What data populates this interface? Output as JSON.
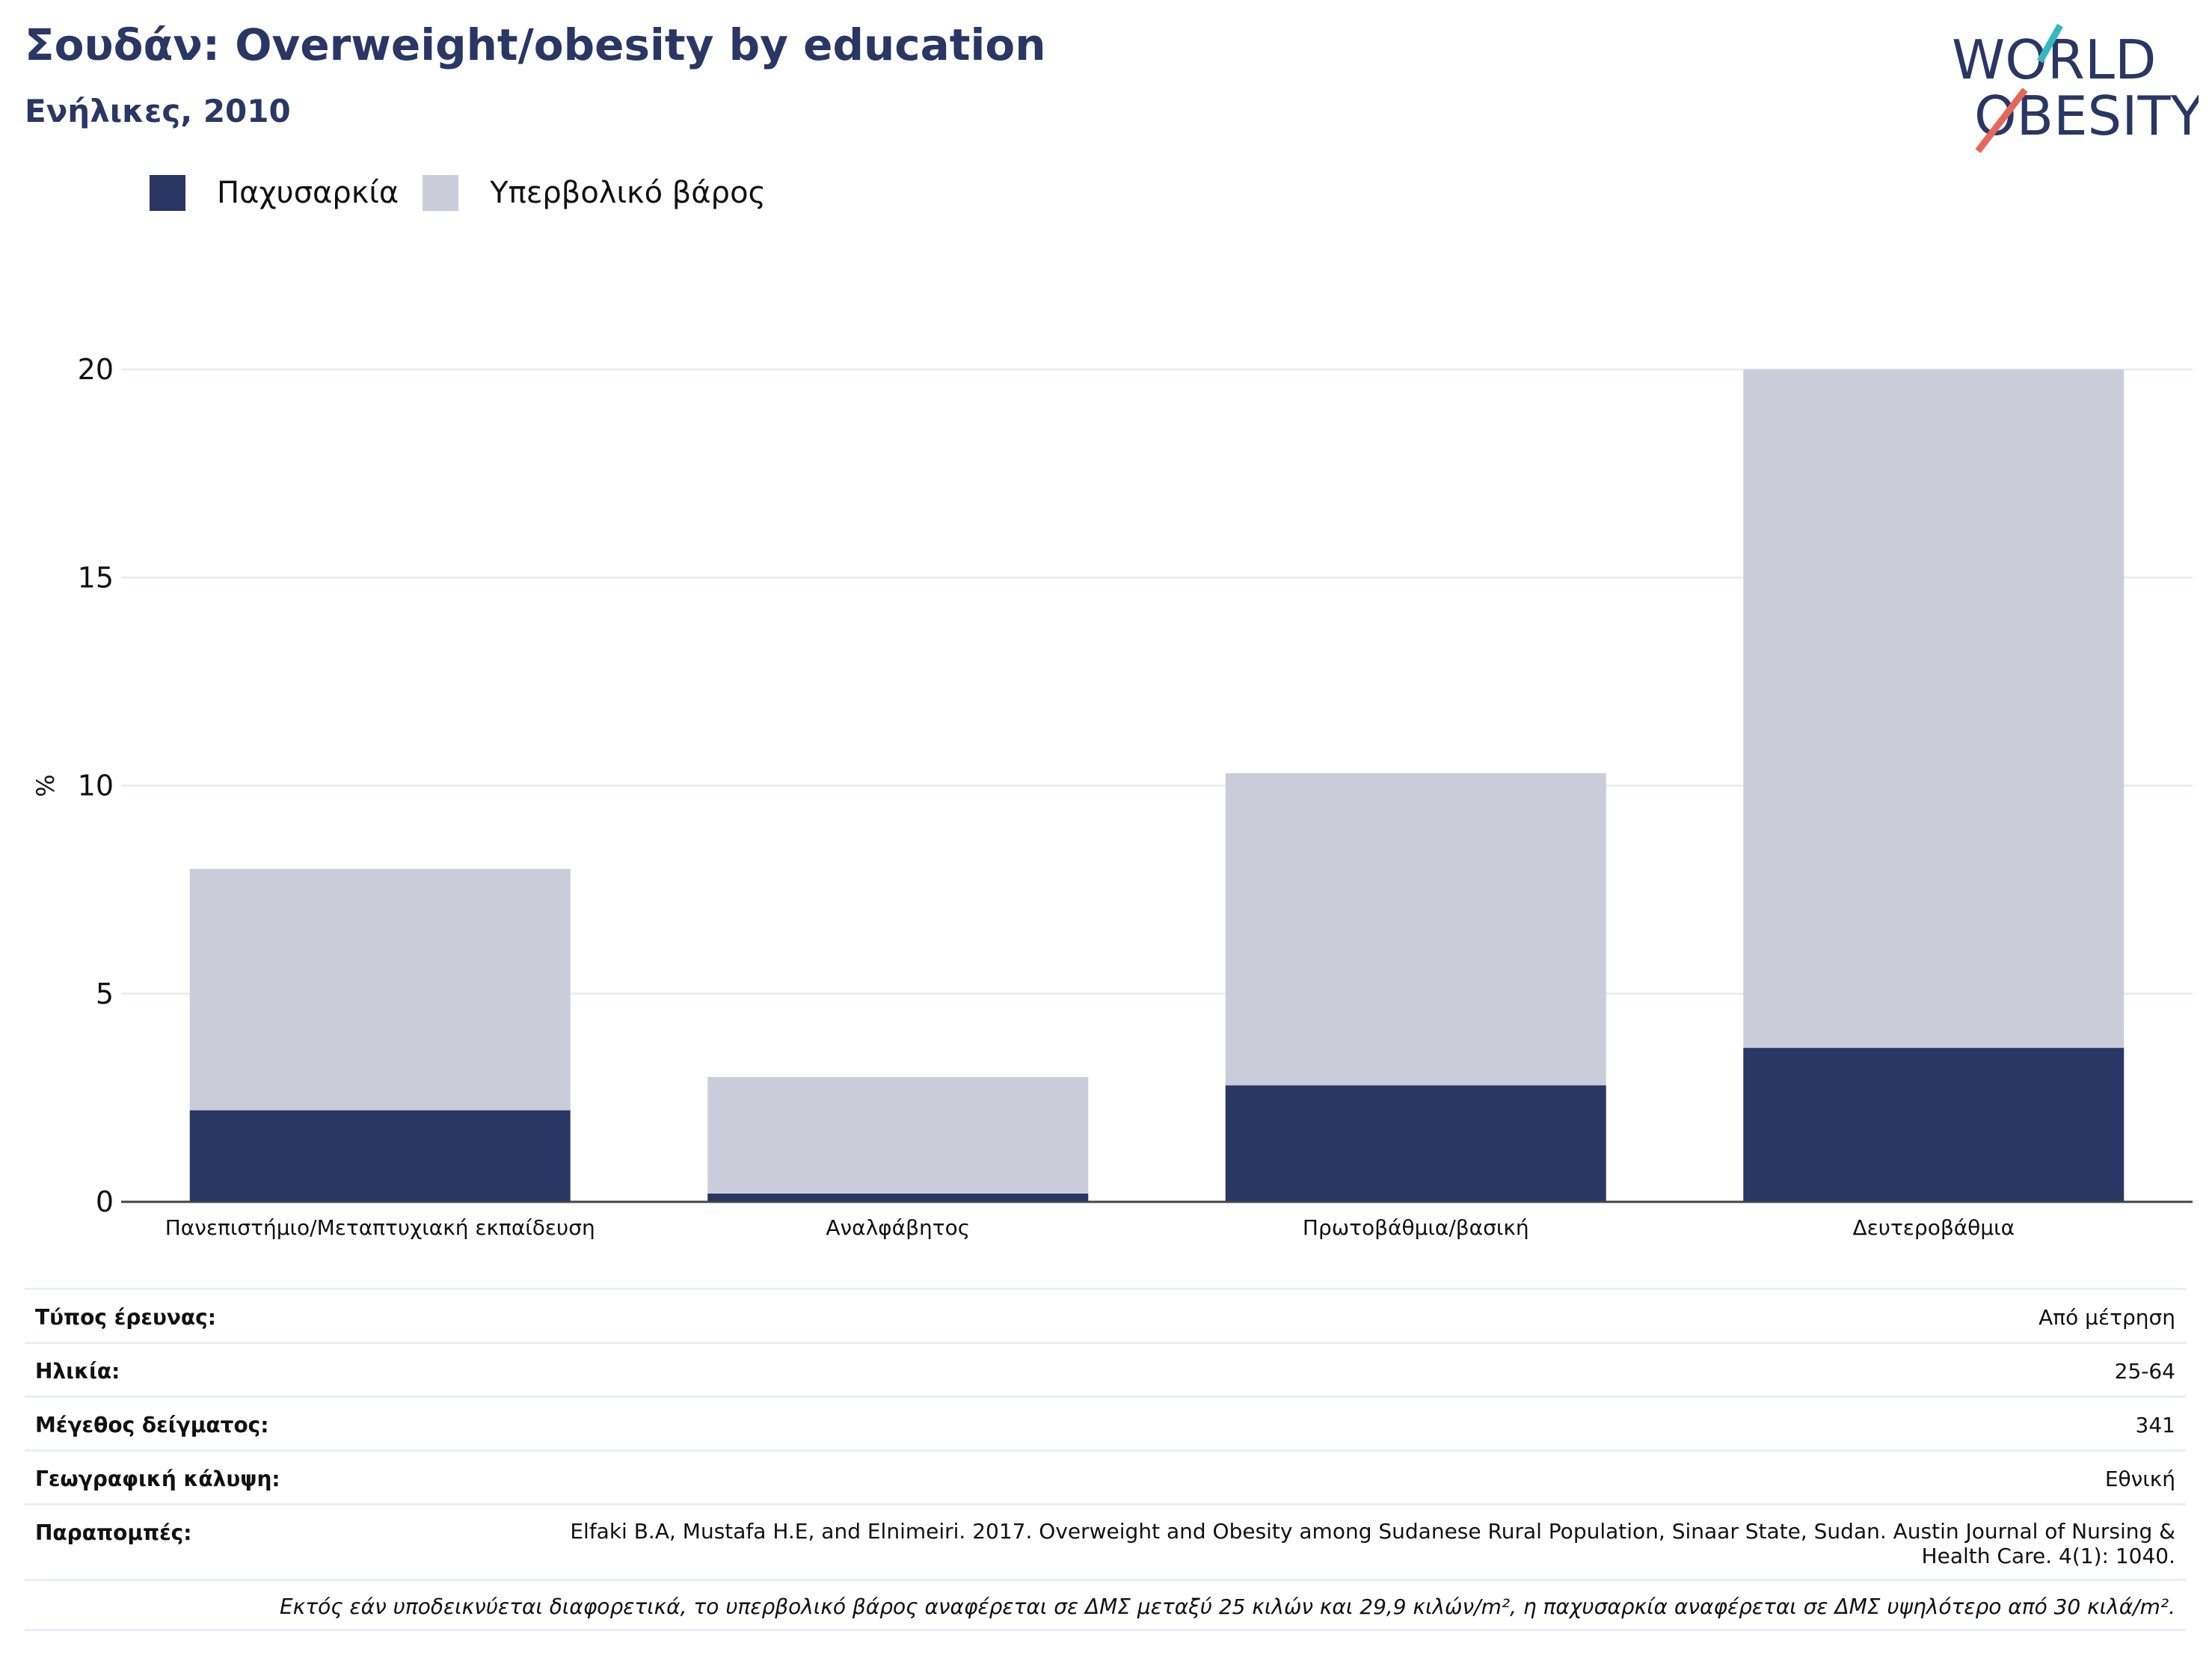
{
  "header": {
    "title": "Σουδάν: Overweight/obesity by education",
    "subtitle": "Ενήλικες, 2010"
  },
  "logo": {
    "line1": "WORLD",
    "line2": "OBESITY"
  },
  "colors": {
    "obesity": "#2a3663",
    "overweight": "#cacdd9",
    "grid": "#e9eef4",
    "axis": "#444444"
  },
  "legend": [
    {
      "label": "Παχυσαρκία",
      "color": "#2a3663"
    },
    {
      "label": "Υπερβολικό βάρος",
      "color": "#cacdd9"
    }
  ],
  "chart_data": {
    "type": "bar",
    "stacked": true,
    "categories": [
      "Πανεπιστήμιο/Μεταπτυχιακή εκπαίδευση",
      "Αναλφάβητος",
      "Πρωτοβάθμια/βασική",
      "Δευτεροβάθμια"
    ],
    "series": [
      {
        "name": "Παχυσαρκία",
        "values": [
          2.2,
          0.2,
          2.8,
          3.7
        ]
      },
      {
        "name": "Υπερβολικό βάρος",
        "values": [
          5.8,
          2.8,
          7.5,
          16.3
        ]
      }
    ],
    "ylabel": "%",
    "ylim": [
      0,
      20
    ],
    "yticks": [
      0,
      5,
      10,
      15,
      20
    ],
    "grid": true,
    "legend_position": "top-left"
  },
  "info": {
    "survey_type": {
      "label": "Τύπος έρευνας:",
      "value": "Από μέτρηση"
    },
    "age": {
      "label": "Ηλικία:",
      "value": "25-64"
    },
    "sample_size": {
      "label": "Μέγεθος δείγματος:",
      "value": "341"
    },
    "coverage": {
      "label": "Γεωγραφική κάλυψη:",
      "value": "Εθνική"
    },
    "references": {
      "label": "Παραπομπές:",
      "value": "Elfaki B.A, Mustafa H.E, and Elnimeiri. 2017. Overweight and Obesity among Sudanese Rural Population, Sinaar State, Sudan. Austin Journal of Nursing & Health Care. 4(1): 1040."
    },
    "note": "Εκτός εάν υποδεικνύεται διαφορετικά, το υπερβολικό βάρος αναφέρεται σε ΔΜΣ μεταξύ 25 κιλών και 29,9 κιλών/m², η παχυσαρκία αναφέρεται σε ΔΜΣ υψηλότερο από 30 κιλά/m²."
  }
}
